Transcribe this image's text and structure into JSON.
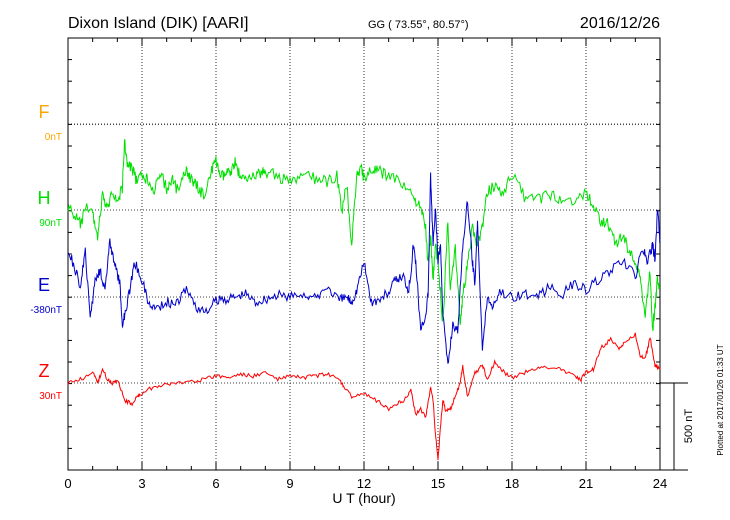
{
  "header": {
    "station": "Dixon Island (DIK)  [AARI]",
    "coords": "GG ( 73.55°,  80.57°)",
    "date": "2016/12/26"
  },
  "footer_note": "Plotted at 2017/01/26 01:33 UT",
  "scale_bar_label": "500 nT",
  "chart_data": {
    "type": "line",
    "xlabel": "U T (hour)",
    "xlim": [
      0,
      24
    ],
    "xticks": [
      "0",
      "3",
      "6",
      "9",
      "12",
      "15",
      "18",
      "21",
      "24"
    ],
    "scale_nT_per_division": 500,
    "grid": true,
    "series": [
      {
        "name": "F",
        "baseline": "0nT",
        "color": "#ffa500",
        "x": [],
        "y": []
      },
      {
        "name": "H",
        "baseline": "90nT",
        "color": "#00e000",
        "x": [
          0,
          0.3,
          0.5,
          0.8,
          1.0,
          1.2,
          1.4,
          1.6,
          1.8,
          2.0,
          2.2,
          2.3,
          2.4,
          2.6,
          2.8,
          3.0,
          3.2,
          3.5,
          3.8,
          4.0,
          4.2,
          4.5,
          4.8,
          5.0,
          5.2,
          5.5,
          5.8,
          6.0,
          6.2,
          6.4,
          6.6,
          6.8,
          7.0,
          7.2,
          7.5,
          7.8,
          8.0,
          8.5,
          9.0,
          9.5,
          10.0,
          10.5,
          10.9,
          11.1,
          11.3,
          11.5,
          11.7,
          11.9,
          12.0,
          12.3,
          12.6,
          13.0,
          13.5,
          14.0,
          14.3,
          14.5,
          14.6,
          14.7,
          14.8,
          14.9,
          15.0,
          15.2,
          15.4,
          15.5,
          15.7,
          15.9,
          16.0,
          16.2,
          16.4,
          16.6,
          16.8,
          17.0,
          17.3,
          17.6,
          18.0,
          18.5,
          19.0,
          19.5,
          20.0,
          20.5,
          21.0,
          21.3,
          21.6,
          21.9,
          22.2,
          22.5,
          22.8,
          23.0,
          23.2,
          23.4,
          23.6,
          23.7,
          23.8,
          23.9,
          24.0
        ],
        "y": [
          20,
          -40,
          -80,
          20,
          -20,
          -150,
          80,
          0,
          120,
          40,
          130,
          400,
          260,
          240,
          160,
          200,
          180,
          120,
          200,
          120,
          180,
          100,
          240,
          170,
          140,
          80,
          220,
          280,
          190,
          200,
          230,
          280,
          170,
          200,
          190,
          210,
          220,
          200,
          150,
          200,
          180,
          160,
          200,
          -20,
          150,
          -200,
          200,
          240,
          180,
          230,
          220,
          200,
          160,
          80,
          0,
          -100,
          -300,
          -150,
          -400,
          -200,
          -300,
          -650,
          -50,
          -450,
          -200,
          -650,
          -500,
          -300,
          -100,
          -200,
          -100,
          100,
          140,
          100,
          200,
          80,
          60,
          90,
          60,
          60,
          100,
          20,
          -60,
          -80,
          -200,
          -150,
          -250,
          -300,
          -400,
          -600,
          -350,
          -700,
          -550,
          -400,
          -450
        ]
      },
      {
        "name": "E",
        "baseline": "-380nT",
        "color": "#0000cd",
        "x": [
          0,
          0.3,
          0.5,
          0.7,
          0.9,
          1.1,
          1.3,
          1.5,
          1.7,
          1.9,
          2.1,
          2.2,
          2.3,
          2.5,
          2.7,
          3.0,
          3.3,
          3.6,
          4.0,
          4.4,
          4.8,
          5.2,
          5.6,
          6.0,
          6.4,
          6.8,
          7.2,
          7.6,
          8.0,
          8.5,
          9.0,
          9.5,
          10.0,
          10.5,
          11.0,
          11.3,
          11.5,
          11.7,
          12.0,
          12.3,
          12.6,
          13.0,
          13.3,
          13.6,
          13.8,
          13.9,
          14.0,
          14.1,
          14.3,
          14.5,
          14.6,
          14.7,
          14.8,
          14.9,
          15.0,
          15.1,
          15.2,
          15.4,
          15.6,
          15.8,
          16.0,
          16.2,
          16.4,
          16.5,
          16.6,
          16.8,
          17.0,
          17.2,
          17.5,
          18.0,
          18.5,
          19.0,
          19.5,
          20.0,
          20.5,
          21.0,
          21.5,
          22.0,
          22.5,
          23.0,
          23.3,
          23.5,
          23.7,
          23.8,
          23.9,
          24.0
        ],
        "y": [
          280,
          150,
          60,
          260,
          -120,
          100,
          160,
          40,
          320,
          180,
          80,
          -160,
          -100,
          40,
          200,
          100,
          -50,
          -60,
          -30,
          -40,
          50,
          -60,
          -90,
          -20,
          -10,
          0,
          20,
          -30,
          -10,
          10,
          0,
          20,
          -10,
          60,
          -20,
          0,
          -30,
          40,
          200,
          -30,
          -20,
          30,
          100,
          120,
          40,
          140,
          300,
          200,
          -200,
          -100,
          20,
          700,
          300,
          500,
          200,
          300,
          -100,
          -400,
          -150,
          -200,
          300,
          550,
          200,
          80,
          450,
          -300,
          0,
          -50,
          30,
          0,
          20,
          -10,
          60,
          10,
          80,
          40,
          100,
          150,
          200,
          120,
          280,
          200,
          300,
          220,
          500,
          320
        ]
      },
      {
        "name": "Z",
        "baseline": "30nT",
        "color": "#ff0000",
        "x": [
          0,
          0.5,
          1.0,
          1.2,
          1.4,
          1.6,
          1.8,
          2.0,
          2.3,
          2.6,
          2.8,
          3.0,
          3.5,
          4.0,
          4.5,
          5.0,
          5.5,
          6.0,
          6.5,
          7.0,
          7.5,
          8.0,
          8.5,
          9.0,
          9.5,
          10.0,
          10.5,
          11.0,
          11.2,
          11.5,
          12.0,
          12.5,
          13.0,
          13.3,
          13.6,
          13.9,
          14.1,
          14.3,
          14.5,
          14.7,
          14.8,
          14.9,
          15.0,
          15.1,
          15.2,
          15.3,
          15.5,
          15.7,
          15.9,
          16.0,
          16.2,
          16.5,
          16.8,
          17.0,
          17.3,
          17.6,
          18.0,
          18.5,
          19.0,
          19.5,
          20.0,
          20.5,
          20.8,
          21.0,
          21.3,
          21.6,
          22.0,
          22.3,
          22.6,
          23.0,
          23.2,
          23.4,
          23.6,
          23.8,
          24.0
        ],
        "y": [
          0,
          20,
          60,
          0,
          80,
          20,
          0,
          20,
          -100,
          -120,
          -80,
          -60,
          -20,
          -10,
          0,
          10,
          20,
          40,
          30,
          50,
          40,
          60,
          20,
          40,
          30,
          40,
          50,
          20,
          -20,
          -80,
          -60,
          -100,
          -150,
          -120,
          -100,
          -40,
          -180,
          -150,
          -200,
          -20,
          -100,
          -300,
          -450,
          -250,
          -100,
          -150,
          -150,
          -80,
          0,
          100,
          -80,
          60,
          100,
          20,
          120,
          70,
          30,
          60,
          80,
          90,
          80,
          40,
          20,
          60,
          80,
          200,
          250,
          200,
          230,
          280,
          150,
          140,
          260,
          100,
          80
        ]
      }
    ]
  }
}
